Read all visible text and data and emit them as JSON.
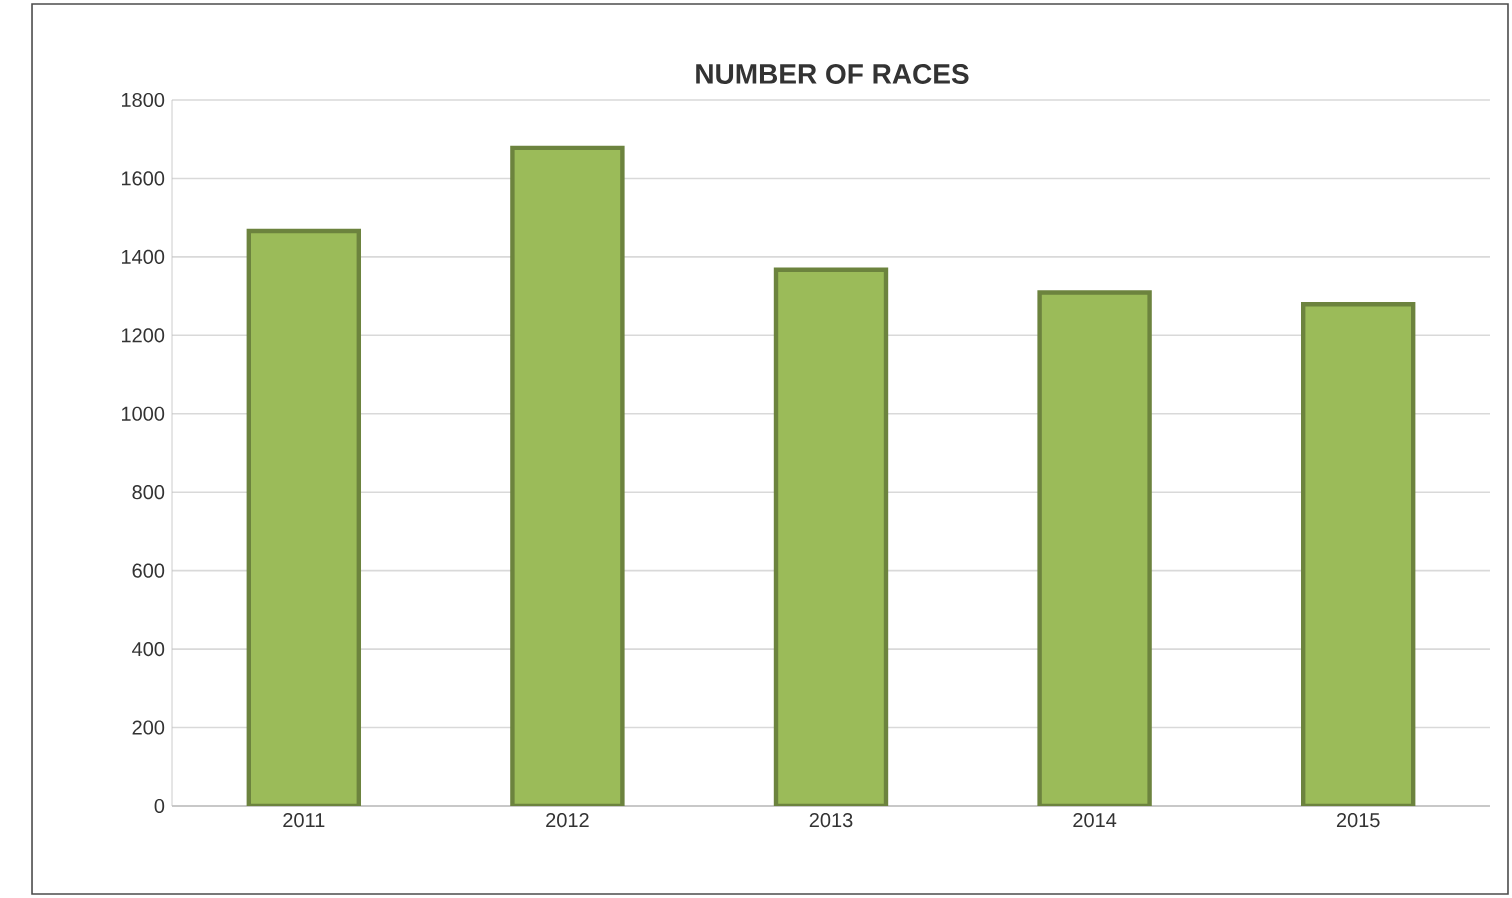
{
  "chart_data": {
    "type": "bar",
    "title": "NUMBER OF RACES",
    "categories": [
      "2011",
      "2012",
      "2013",
      "2014",
      "2015"
    ],
    "values": [
      1466,
      1678,
      1367,
      1309,
      1279
    ],
    "color": "#9bbb59",
    "ylim": [
      0,
      1800
    ],
    "yticks": [
      0,
      200,
      400,
      600,
      800,
      1000,
      1200,
      1400,
      1600,
      1800
    ],
    "grid": "y"
  }
}
